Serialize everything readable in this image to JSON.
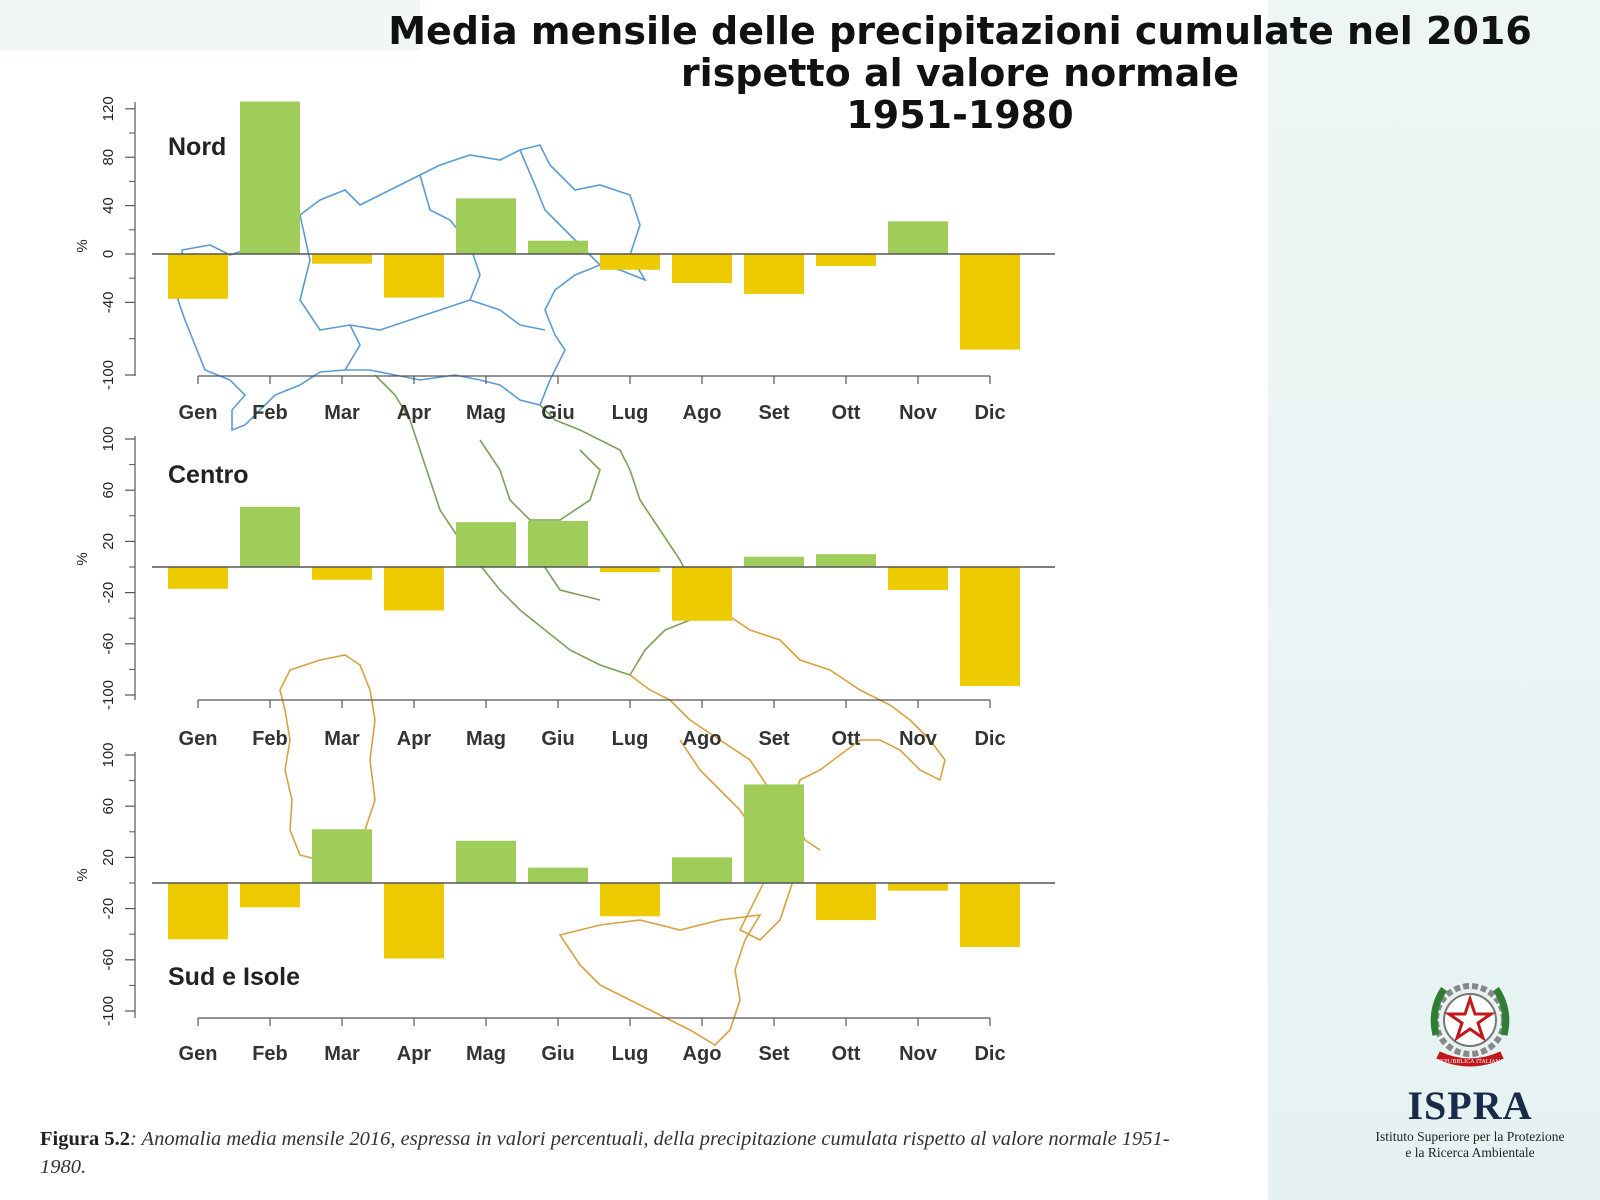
{
  "title": {
    "line1": "Media mensile delle precipitazioni cumulate nel 2016",
    "line2": "rispetto al valore normale",
    "line3": "1951-1980"
  },
  "caption": {
    "label": "Figura 5.2",
    "text": ": Anomalia media mensile 2016, espressa in valori percentuali, della precipitazione cumulata rispetto al valore normale 1951-1980."
  },
  "logo": {
    "emblem_text": "REPUBBLICA ITALIANA",
    "name": "ISPRA",
    "subtitle_line1": "Istituto Superiore per la Protezione",
    "subtitle_line2": "e la Ricerca Ambientale"
  },
  "colors": {
    "positive": "#a0cc5a",
    "negative": "#eecb00",
    "axis": "#555555",
    "map_nord": "#5b9bd5",
    "map_centro": "#7aa05a",
    "map_sud": "#d9a040"
  },
  "chart_data": [
    {
      "type": "bar",
      "panel": "Nord",
      "ylabel": "%",
      "categories": [
        "Gen",
        "Feb",
        "Mar",
        "Apr",
        "Mag",
        "Giu",
        "Lug",
        "Ago",
        "Set",
        "Ott",
        "Nov",
        "Dic"
      ],
      "values": [
        -37,
        126,
        -8,
        -36,
        46,
        11,
        -13,
        -24,
        -33,
        -10,
        27,
        -79
      ],
      "yticks": [
        -100,
        -40,
        0,
        40,
        80,
        120
      ],
      "tick_labels": [
        "-100",
        "-40",
        "0",
        "40",
        "80",
        "120"
      ],
      "ylim": [
        -100,
        126
      ]
    },
    {
      "type": "bar",
      "panel": "Centro",
      "ylabel": "%",
      "categories": [
        "Gen",
        "Feb",
        "Mar",
        "Apr",
        "Mag",
        "Giu",
        "Lug",
        "Ago",
        "Set",
        "Ott",
        "Nov",
        "Dic"
      ],
      "values": [
        -17,
        47,
        -10,
        -34,
        35,
        36,
        -4,
        -42,
        8,
        10,
        -18,
        -93
      ],
      "yticks": [
        -100,
        -60,
        -20,
        20,
        60,
        100
      ],
      "tick_labels": [
        "-100",
        "-60",
        "-20",
        "20",
        "60",
        "100"
      ],
      "ylim": [
        -100,
        100
      ]
    },
    {
      "type": "bar",
      "panel": "Sud e Isole",
      "ylabel": "%",
      "categories": [
        "Gen",
        "Feb",
        "Mar",
        "Apr",
        "Mag",
        "Giu",
        "Lug",
        "Ago",
        "Set",
        "Ott",
        "Nov",
        "Dic"
      ],
      "values": [
        -44,
        -19,
        42,
        -59,
        33,
        12,
        -26,
        20,
        77,
        -29,
        -6,
        -50
      ],
      "yticks": [
        -100,
        -60,
        -20,
        20,
        60,
        100
      ],
      "tick_labels": [
        "-100",
        "-60",
        "-20",
        "20",
        "60",
        "100"
      ],
      "ylim": [
        -100,
        100
      ]
    }
  ]
}
